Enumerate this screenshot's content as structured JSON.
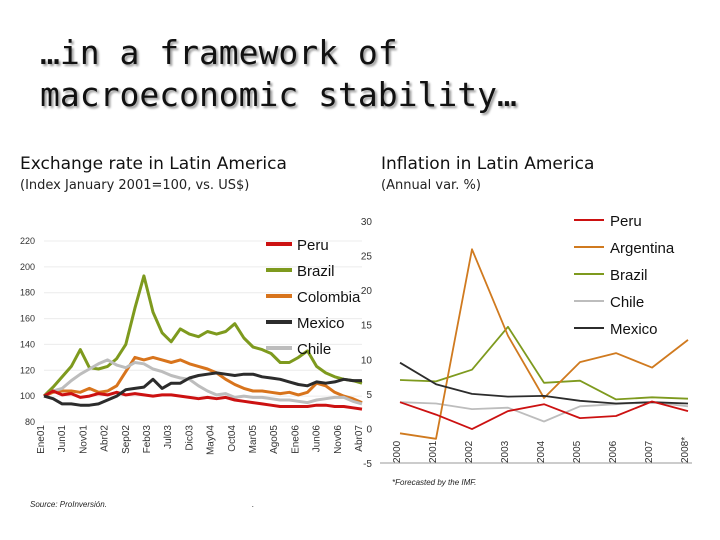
{
  "title_lines": [
    "…in a framework of",
    "macroeconomic stability…"
  ],
  "footnotes": {
    "source": "Source: ProInversión.",
    "dot": ".",
    "forecast": "*Forecasted by the IMF."
  },
  "colors": {
    "peru": "#cc1111",
    "argentina": "#d07a1f",
    "brazil": "#7e9a1e",
    "colombia": "#d8741c",
    "mexico": "#2c2c2c",
    "chile": "#bdbdbd"
  },
  "chart_data": [
    {
      "type": "line",
      "title": "Exchange rate in Latin America",
      "subtitle": "(Index January 2001=100, vs. US$)",
      "yticks": [
        "220",
        "200",
        "180",
        "160",
        "140",
        "120",
        "100",
        "80"
      ],
      "ylim": [
        80,
        220
      ],
      "x_labels": [
        "Ene01",
        "Jun01",
        "Nov01",
        "Abr02",
        "Sep02",
        "Feb03",
        "Jul03",
        "Dic03",
        "May04",
        "Oct04",
        "Mar05",
        "Ago05",
        "Ene06",
        "Jun06",
        "Nov06",
        "Abr07"
      ],
      "legend": [
        "Peru",
        "Brazil",
        "Colombia",
        "Mexico",
        "Chile"
      ],
      "series": [
        {
          "name": "Peru",
          "values": [
            100,
            104,
            101,
            102,
            99,
            100,
            102,
            101,
            103,
            101,
            102,
            101,
            100,
            101,
            101,
            100,
            99,
            98,
            99,
            98,
            99,
            97,
            96,
            95,
            94,
            93,
            92,
            92,
            92,
            92,
            93,
            93,
            92,
            92,
            91,
            90
          ]
        },
        {
          "name": "Brazil",
          "values": [
            100,
            107,
            115,
            123,
            136,
            122,
            121,
            123,
            129,
            140,
            168,
            193,
            165,
            149,
            142,
            152,
            148,
            146,
            150,
            148,
            150,
            156,
            145,
            138,
            136,
            133,
            126,
            126,
            130,
            135,
            123,
            118,
            115,
            113,
            112,
            110
          ]
        },
        {
          "name": "Colombia",
          "values": [
            100,
            103,
            104,
            104,
            103,
            106,
            103,
            104,
            108,
            119,
            130,
            128,
            130,
            128,
            126,
            128,
            125,
            123,
            121,
            118,
            113,
            109,
            106,
            104,
            104,
            103,
            102,
            103,
            101,
            103,
            110,
            108,
            103,
            100,
            98,
            95
          ]
        },
        {
          "name": "Mexico",
          "values": [
            100,
            98,
            94,
            94,
            93,
            93,
            94,
            97,
            100,
            105,
            106,
            107,
            113,
            106,
            110,
            110,
            114,
            116,
            117,
            118,
            117,
            116,
            117,
            117,
            115,
            114,
            113,
            111,
            109,
            108,
            111,
            110,
            111,
            113,
            112,
            112
          ]
        },
        {
          "name": "Chile",
          "values": [
            100,
            104,
            106,
            112,
            117,
            121,
            125,
            128,
            124,
            122,
            126,
            125,
            121,
            119,
            116,
            114,
            113,
            108,
            104,
            101,
            102,
            99,
            100,
            99,
            99,
            98,
            97,
            97,
            96,
            95,
            97,
            98,
            99,
            99,
            96,
            94
          ]
        }
      ]
    },
    {
      "type": "line",
      "title": "Inflation in Latin America",
      "subtitle": "(Annual var. %)",
      "yticks": [
        "30",
        "25",
        "20",
        "15",
        "10",
        "5",
        "0",
        "-5"
      ],
      "ylim": [
        -5,
        30
      ],
      "categories": [
        "2000",
        "2001",
        "2002",
        "2003",
        "2004",
        "2005",
        "2006",
        "2007",
        "2008*"
      ],
      "legend": [
        "Peru",
        "Argentina",
        "Brazil",
        "Chile",
        "Mexico"
      ],
      "series": [
        {
          "name": "Peru",
          "values": [
            3.8,
            2.0,
            -0.1,
            2.5,
            3.5,
            1.5,
            1.8,
            3.9,
            2.5
          ]
        },
        {
          "name": "Argentina",
          "values": [
            -0.7,
            -1.5,
            25.9,
            13.4,
            4.4,
            9.6,
            10.9,
            8.8,
            12.8
          ]
        },
        {
          "name": "Brazil",
          "values": [
            7.0,
            6.8,
            8.5,
            14.7,
            6.6,
            6.9,
            4.2,
            4.5,
            4.3
          ]
        },
        {
          "name": "Chile",
          "values": [
            3.8,
            3.6,
            2.8,
            3.0,
            1.0,
            3.2,
            3.5,
            3.8,
            3.2
          ]
        },
        {
          "name": "Mexico",
          "values": [
            9.5,
            6.4,
            5.0,
            4.6,
            4.7,
            4.0,
            3.6,
            3.8,
            3.6
          ]
        }
      ]
    }
  ]
}
